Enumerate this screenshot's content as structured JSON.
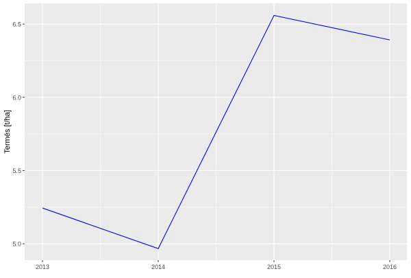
{
  "chart_data": {
    "type": "line",
    "title": "",
    "xlabel": "",
    "ylabel": "Termés [t/ha]",
    "x": [
      2013,
      2014,
      2015,
      2016
    ],
    "series": [
      {
        "values": [
          5.244,
          4.967,
          6.559,
          6.392
        ],
        "color": "#0000FF"
      }
    ],
    "x_ticks": [
      "2013",
      "2014",
      "2015",
      "2016"
    ],
    "y_ticks": [
      "5.0",
      "5.5",
      "6.0",
      "6.5"
    ],
    "xlim": [
      2012.846,
      2016.148
    ],
    "ylim": [
      4.888,
      6.641
    ],
    "grid": true,
    "panel_background": "#EBEBEB",
    "legend": "none"
  }
}
